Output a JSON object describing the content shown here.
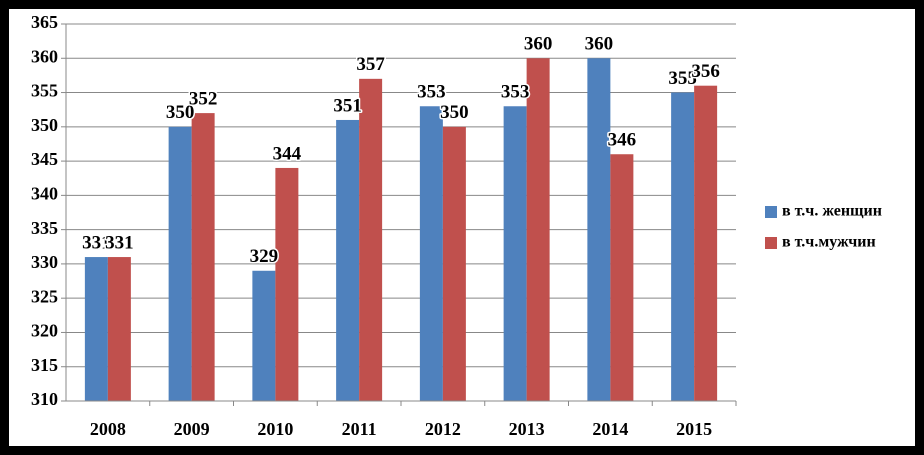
{
  "chart_data": {
    "type": "bar",
    "categories": [
      "2008",
      "2009",
      "2010",
      "2011",
      "2012",
      "2013",
      "2014",
      "2015"
    ],
    "series": [
      {
        "name": "в т.ч. женщин",
        "color": "#4f81bd",
        "values": [
          331,
          350,
          329,
          351,
          353,
          353,
          360,
          355
        ]
      },
      {
        "name": "в т.ч.мужчин",
        "color": "#c0504d",
        "values": [
          331,
          352,
          344,
          357,
          350,
          360,
          346,
          356
        ]
      }
    ],
    "ylim": [
      310,
      365
    ],
    "yticks": [
      310,
      315,
      320,
      325,
      330,
      335,
      340,
      345,
      350,
      355,
      360,
      365
    ],
    "grid": true,
    "legend": "right"
  }
}
